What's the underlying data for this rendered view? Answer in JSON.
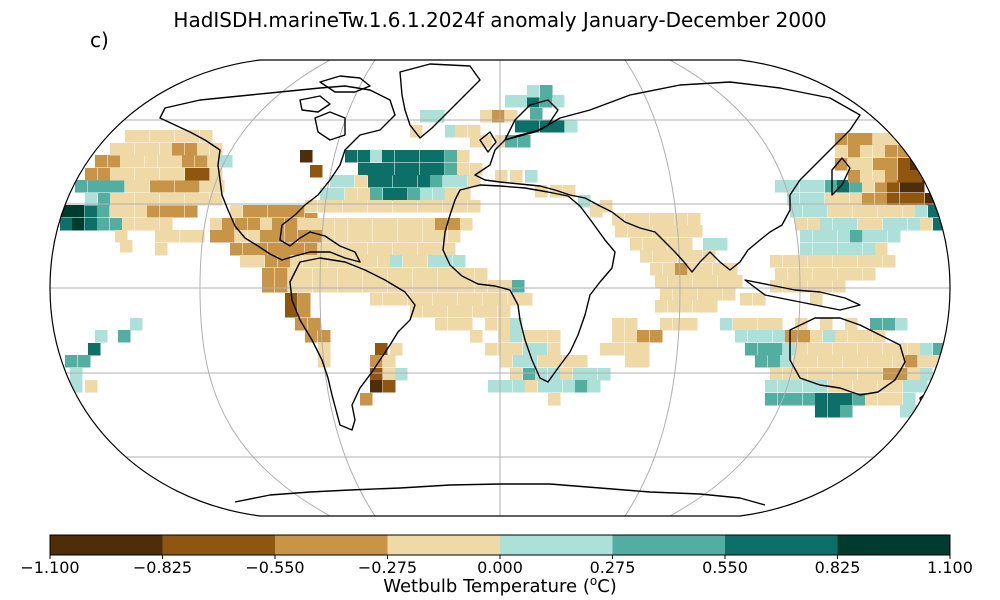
{
  "title": "HadISDH.marineTw.1.6.1.2024f anomaly January-December 2000",
  "panel_label": "c)",
  "colorbar": {
    "label_prefix": "Wetbulb Temperature (",
    "label_sup": "o",
    "label_suffix": "C)",
    "ticks": [
      "−1.100",
      "−0.825",
      "−0.550",
      "−0.275",
      "0.000",
      "0.275",
      "0.550",
      "0.825",
      "1.100"
    ],
    "colors": [
      "#4d2d0a",
      "#8f5610",
      "#c89448",
      "#efd9a7",
      "#ade0d9",
      "#53aea2",
      "#0c7068",
      "#003b2f"
    ]
  },
  "map": {
    "projection": "Robinson",
    "gridlines": true,
    "colors": {
      "ocean": "#ffffff",
      "coastline": "#000000",
      "grid": "#b0b0b0"
    }
  }
}
